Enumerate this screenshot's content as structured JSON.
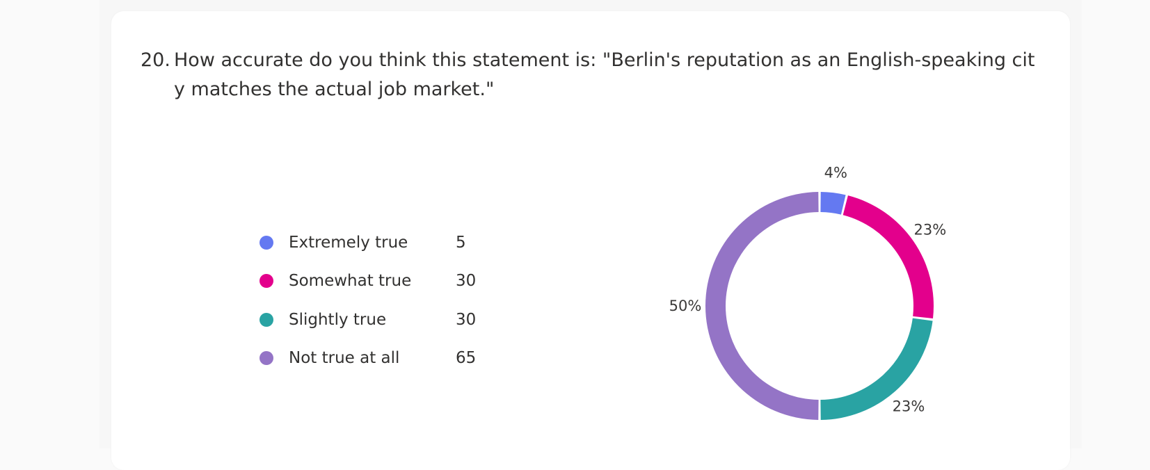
{
  "question": {
    "number": "20.",
    "text": "How accurate do you think this statement is: \"Berlin's reputation as an English-speaking city matches the actual job market.\""
  },
  "chart_data": {
    "type": "pie",
    "title": "",
    "categories": [
      "Extremely true",
      "Somewhat true",
      "Slightly true",
      "Not true at all"
    ],
    "values": [
      5,
      30,
      30,
      65
    ],
    "percent_labels": [
      "4%",
      "23%",
      "23%",
      "50%"
    ],
    "colors": [
      "#6479f1",
      "#e3008c",
      "#29a3a3",
      "#9474c6"
    ],
    "legend_position": "left"
  }
}
